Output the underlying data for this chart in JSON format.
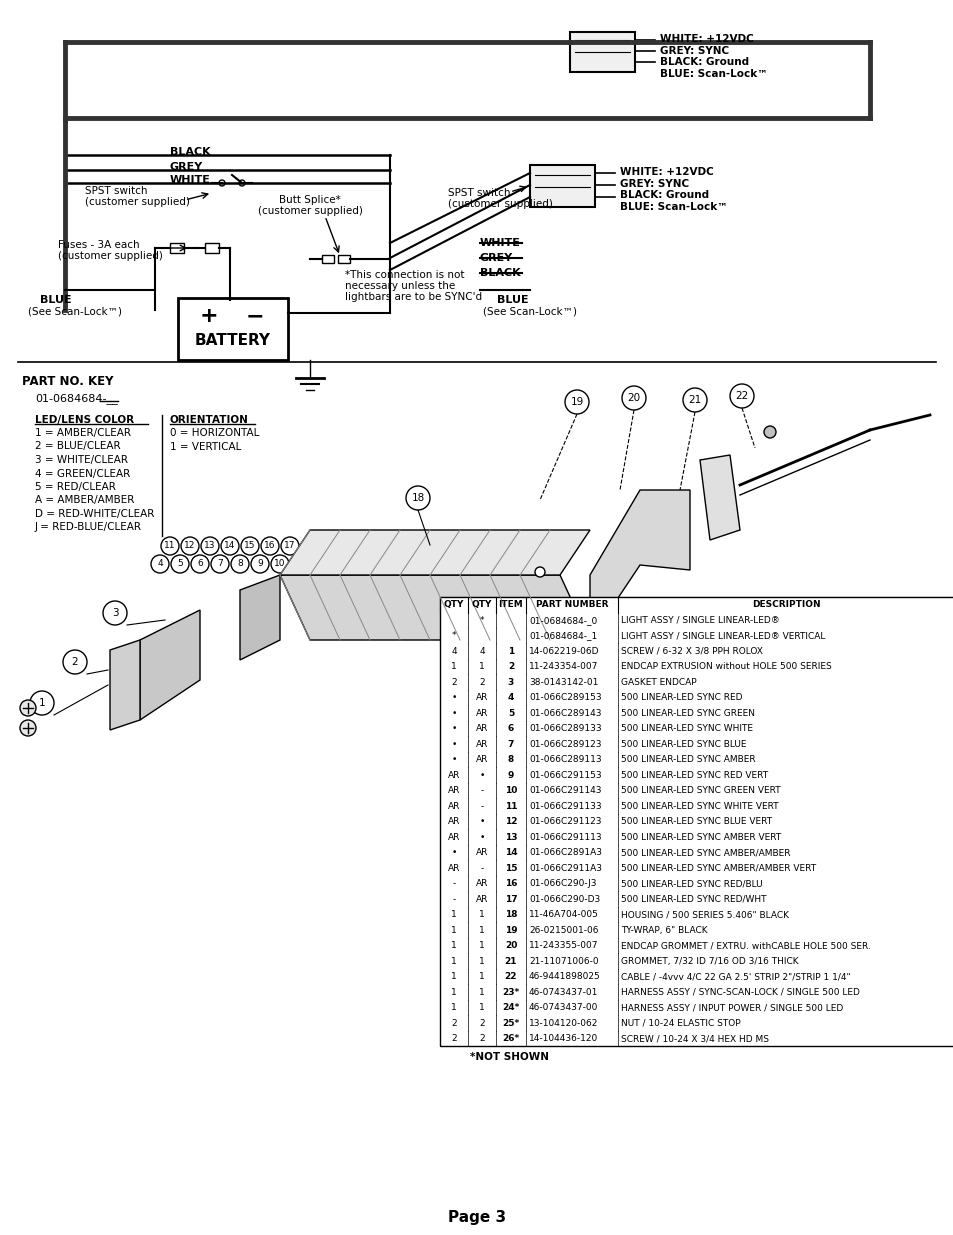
{
  "page_bg": "#ffffff",
  "page_width": 9.54,
  "page_height": 12.35,
  "dpi": 100,
  "table_header": [
    "QTY",
    "QTY",
    "ITEM",
    "PART NUMBER",
    "DESCRIPTION"
  ],
  "table_rows": [
    [
      "",
      "*",
      "",
      "01-0684684-_0",
      "LIGHT ASSY / SINGLE LINEAR-LED®"
    ],
    [
      "*",
      "",
      "",
      "01-0684684-_1",
      "LIGHT ASSY / SINGLE LINEAR-LED® VERTICAL"
    ],
    [
      "4",
      "4",
      "1",
      "14-062219-06D",
      "SCREW / 6-32 X 3/8 PPH ROLOX"
    ],
    [
      "1",
      "1",
      "2",
      "11-243354-007",
      "ENDCAP EXTRUSION without HOLE 500 SERIES"
    ],
    [
      "2",
      "2",
      "3",
      "38-0143142-01",
      "GASKET ENDCAP"
    ],
    [
      "•",
      "AR",
      "4",
      "01-066C289153",
      "500 LINEAR-LED SYNC RED"
    ],
    [
      "•",
      "AR",
      "5",
      "01-066C289143",
      "500 LINEAR-LED SYNC GREEN"
    ],
    [
      "•",
      "AR",
      "6",
      "01-066C289133",
      "500 LINEAR-LED SYNC WHITE"
    ],
    [
      "•",
      "AR",
      "7",
      "01-066C289123",
      "500 LINEAR-LED SYNC BLUE"
    ],
    [
      "•",
      "AR",
      "8",
      "01-066C289113",
      "500 LINEAR-LED SYNC AMBER"
    ],
    [
      "AR",
      "•",
      "9",
      "01-066C291153",
      "500 LINEAR-LED SYNC RED VERT"
    ],
    [
      "AR",
      "-",
      "10",
      "01-066C291143",
      "500 LINEAR-LED SYNC GREEN VERT"
    ],
    [
      "AR",
      "-",
      "11",
      "01-066C291133",
      "500 LINEAR-LED SYNC WHITE VERT"
    ],
    [
      "AR",
      "•",
      "12",
      "01-066C291123",
      "500 LINEAR-LED SYNC BLUE VERT"
    ],
    [
      "AR",
      "•",
      "13",
      "01-066C291113",
      "500 LINEAR-LED SYNC AMBER VERT"
    ],
    [
      "•",
      "AR",
      "14",
      "01-066C2891A3",
      "500 LINEAR-LED SYNC AMBER/AMBER"
    ],
    [
      "AR",
      "-",
      "15",
      "01-066C2911A3",
      "500 LINEAR-LED SYNC AMBER/AMBER VERT"
    ],
    [
      "-",
      "AR",
      "16",
      "01-066C290-J3",
      "500 LINEAR-LED SYNC RED/BLU"
    ],
    [
      "-",
      "AR",
      "17",
      "01-066C290-D3",
      "500 LINEAR-LED SYNC RED/WHT"
    ],
    [
      "1",
      "1",
      "18",
      "11-46A704-005",
      "HOUSING / 500 SERIES 5.406\" BLACK"
    ],
    [
      "1",
      "1",
      "19",
      "26-0215001-06",
      "TY-WRAP, 6\" BLACK"
    ],
    [
      "1",
      "1",
      "20",
      "11-243355-007",
      "ENDCAP GROMMET / EXTRU. withCABLE HOLE 500 SER."
    ],
    [
      "1",
      "1",
      "21",
      "21-11071006-0",
      "GROMMET, 7/32 ID 7/16 OD 3/16 THICK"
    ],
    [
      "1",
      "1",
      "22",
      "46-9441898025",
      "CABLE / -4vvv 4/C 22 GA 2.5' STRIP 2\"/STRIP 1 1/4\""
    ],
    [
      "1",
      "1",
      "23*",
      "46-0743437-01",
      "HARNESS ASSY / SYNC-SCAN-LOCK / SINGLE 500 LED"
    ],
    [
      "1",
      "1",
      "24*",
      "46-0743437-00",
      "HARNESS ASSY / INPUT POWER / SINGLE 500 LED"
    ],
    [
      "2",
      "2",
      "25*",
      "13-104120-062",
      "NUT / 10-24 ELASTIC STOP"
    ],
    [
      "2",
      "2",
      "26*",
      "14-104436-120",
      "SCREW / 10-24 X 3/4 HEX HD MS"
    ]
  ],
  "not_shown": "*NOT SHOWN",
  "page_number": "Page 3",
  "part_no_key_title": "PART NO. KEY",
  "part_no": "01-0684684-",
  "led_lens_color_title": "LED/LENS COLOR",
  "orientation_title": "ORIENTATION",
  "led_colors": [
    "1 = AMBER/CLEAR",
    "2 = BLUE/CLEAR",
    "3 = WHITE/CLEAR",
    "4 = GREEN/CLEAR",
    "5 = RED/CLEAR",
    "A = AMBER/AMBER",
    "D = RED-WHITE/CLEAR",
    "J = RED-BLUE/CLEAR"
  ],
  "orientations": [
    "0 = HORIZONTAL",
    "1 = VERTICAL"
  ],
  "connector_label": "WHITE: +12VDC\nGREY: SYNC\nBLACK: Ground\nBLUE: Scan-Lock™"
}
